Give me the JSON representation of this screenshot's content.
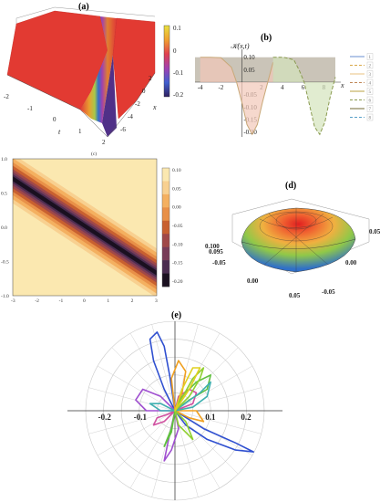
{
  "panels": {
    "a": {
      "label": "(a)"
    },
    "b": {
      "label": "(b)"
    },
    "c": {
      "label": "(c)"
    },
    "d": {
      "label": "(d)"
    },
    "e": {
      "label": "(e)"
    }
  },
  "chart_data": [
    {
      "id": "a",
      "type": "surface3d",
      "title": "(a)",
      "x_axis": {
        "label": "t",
        "ticks": [
          "-2",
          "-1",
          "0",
          "1",
          "2"
        ]
      },
      "y_axis": {
        "label": "x",
        "ticks": [
          "2",
          "0",
          "-2",
          "-4",
          "-6"
        ]
      },
      "z_axis": {
        "ticks": [
          "0.1",
          "0",
          "-0.1",
          "-0.2"
        ]
      },
      "colorbar": {
        "ticks": [
          "0.1",
          "0",
          "-0.1",
          "-0.2"
        ],
        "range": [
          -0.22,
          0.1
        ]
      },
      "description_values": {
        "plateau": 0.1,
        "trough_min": -0.22
      }
    },
    {
      "id": "b",
      "type": "line",
      "title": "(b)",
      "ylabel": "𝒦(x,t)",
      "xlabel": "x",
      "x_ticks": [
        "-4",
        "-2",
        "2",
        "4",
        "6",
        "8"
      ],
      "y_ticks": [
        "0.10",
        "0.05",
        "-0.05",
        "-0.10",
        "-0.15",
        "-0.20"
      ],
      "xlim": [
        -4.5,
        9
      ],
      "ylim": [
        -0.22,
        0.11
      ],
      "series": [
        {
          "color": "#c8a878",
          "dash": "solid",
          "x": [
            -4,
            -3,
            -2,
            -1,
            -0.5,
            0,
            0.5,
            1,
            1.5,
            2,
            3
          ],
          "y": [
            0.1,
            0.1,
            0.098,
            0.06,
            0.0,
            -0.08,
            -0.17,
            -0.21,
            -0.17,
            -0.08,
            0.08
          ],
          "fill": "#f2c8b8"
        },
        {
          "color": "#8a9a50",
          "dash": "dash",
          "x": [
            3,
            4,
            5,
            5.5,
            6,
            6.5,
            7,
            7.5,
            8,
            8.5,
            9
          ],
          "y": [
            0.1,
            0.1,
            0.09,
            0.05,
            0.0,
            -0.09,
            -0.18,
            -0.21,
            -0.16,
            -0.06,
            0.02
          ],
          "fill": "#d4e4bc"
        }
      ],
      "legend_labels": [
        "1",
        "2",
        "3",
        "4",
        "5",
        "6",
        "7",
        "8"
      ],
      "legend_colors": [
        "#6a8fd0",
        "#d8a848",
        "#e8c080",
        "#c08858",
        "#b8a040",
        "#8a9a50",
        "#706830",
        "#58a0c8"
      ]
    },
    {
      "id": "c",
      "type": "contour",
      "title": "(c)",
      "x_ticks": [
        "-3",
        "-2",
        "-1",
        "0",
        "1",
        "2",
        "3"
      ],
      "y_ticks": [
        "1.0",
        "0.5",
        "0.0",
        "-0.5",
        "-1.0"
      ],
      "xlim": [
        -3,
        3
      ],
      "ylim": [
        -1,
        1
      ],
      "colorbar": {
        "ticks": [
          "0.10",
          "0.05",
          "0.00",
          "-0.05",
          "-0.10",
          "-0.15",
          "-0.20"
        ],
        "range": [
          -0.22,
          0.1
        ]
      }
    },
    {
      "id": "d",
      "type": "surface3d",
      "title": "(d)",
      "ticks": [
        "0.100",
        "0.095",
        "-0.05",
        "0.00",
        "0.05",
        "0.05",
        "0.00",
        "-0.05"
      ]
    },
    {
      "id": "e",
      "type": "polar",
      "title": "(e)",
      "r_ticks": [
        "-0.2",
        "-0.1",
        "0.1",
        "0.2"
      ],
      "rlim": [
        0,
        0.25
      ],
      "series": [
        {
          "color": "#3050d0",
          "points": [
            [
              0,
              0
            ],
            [
              -0.03,
              0.06
            ],
            [
              -0.06,
              0.14
            ],
            [
              -0.07,
              0.2
            ],
            [
              -0.05,
              0.22
            ],
            [
              -0.03,
              0.18
            ],
            [
              -0.015,
              0.1
            ],
            [
              0,
              0
            ],
            [
              0.03,
              -0.04
            ],
            [
              0.09,
              -0.08
            ],
            [
              0.17,
              -0.11
            ],
            [
              0.22,
              -0.115
            ],
            [
              0.17,
              -0.09
            ],
            [
              0.08,
              -0.05
            ],
            [
              0,
              0
            ]
          ]
        },
        {
          "color": "#a050d0",
          "points": [
            [
              0,
              0
            ],
            [
              -0.04,
              0.04
            ],
            [
              -0.09,
              0.06
            ],
            [
              -0.11,
              0.03
            ],
            [
              -0.08,
              0.0
            ],
            [
              -0.03,
              0.0
            ],
            [
              0,
              0
            ],
            [
              0.01,
              -0.05
            ],
            [
              -0.01,
              -0.11
            ],
            [
              -0.03,
              -0.14
            ],
            [
              -0.02,
              -0.09
            ],
            [
              0,
              0
            ]
          ]
        },
        {
          "color": "#d050a0",
          "points": [
            [
              0,
              0
            ],
            [
              0.01,
              0.04
            ],
            [
              0.04,
              0.06
            ],
            [
              0.06,
              0.05
            ],
            [
              0.05,
              0.02
            ],
            [
              0,
              0
            ],
            [
              -0.02,
              -0.01
            ],
            [
              -0.05,
              -0.02
            ],
            [
              -0.06,
              -0.04
            ],
            [
              -0.03,
              -0.03
            ],
            [
              0,
              0
            ]
          ]
        },
        {
          "color": "#f0a020",
          "points": [
            [
              0,
              0
            ],
            [
              0.02,
              0.05
            ],
            [
              0.03,
              0.11
            ],
            [
              0.01,
              0.14
            ],
            [
              -0.01,
              0.09
            ],
            [
              0,
              0
            ],
            [
              0.04,
              -0.02
            ],
            [
              0.08,
              -0.03
            ],
            [
              0.06,
              0.0
            ],
            [
              0,
              0
            ]
          ]
        },
        {
          "color": "#60c040",
          "points": [
            [
              0,
              0
            ],
            [
              0.02,
              0.04
            ],
            [
              0.06,
              0.08
            ],
            [
              0.1,
              0.1
            ],
            [
              0.09,
              0.06
            ],
            [
              0.04,
              0.03
            ],
            [
              0,
              0
            ],
            [
              -0.01,
              -0.06
            ],
            [
              -0.03,
              -0.1
            ],
            [
              -0.01,
              -0.05
            ],
            [
              0,
              0
            ]
          ]
        },
        {
          "color": "#40b0b0",
          "points": [
            [
              0,
              0
            ],
            [
              0.05,
              0.01
            ],
            [
              0.09,
              0.04
            ],
            [
              0.1,
              0.08
            ],
            [
              0.07,
              0.05
            ],
            [
              0,
              0
            ],
            [
              -0.04,
              0.02
            ],
            [
              -0.07,
              0.02
            ],
            [
              -0.04,
              0.0
            ],
            [
              0,
              0
            ]
          ]
        },
        {
          "color": "#90d030",
          "points": [
            [
              0,
              0
            ],
            [
              0.04,
              0.04
            ],
            [
              0.07,
              0.09
            ],
            [
              0.08,
              0.12
            ],
            [
              0.05,
              0.09
            ],
            [
              0,
              0
            ],
            [
              0.01,
              -0.04
            ],
            [
              0.05,
              -0.08
            ],
            [
              0.03,
              -0.03
            ],
            [
              0,
              0
            ]
          ]
        },
        {
          "color": "#e0d020",
          "points": [
            [
              0,
              0
            ],
            [
              0.04,
              0.06
            ],
            [
              0.07,
              0.12
            ],
            [
              0.05,
              0.12
            ],
            [
              0.02,
              0.06
            ],
            [
              0,
              0
            ]
          ]
        }
      ]
    }
  ]
}
